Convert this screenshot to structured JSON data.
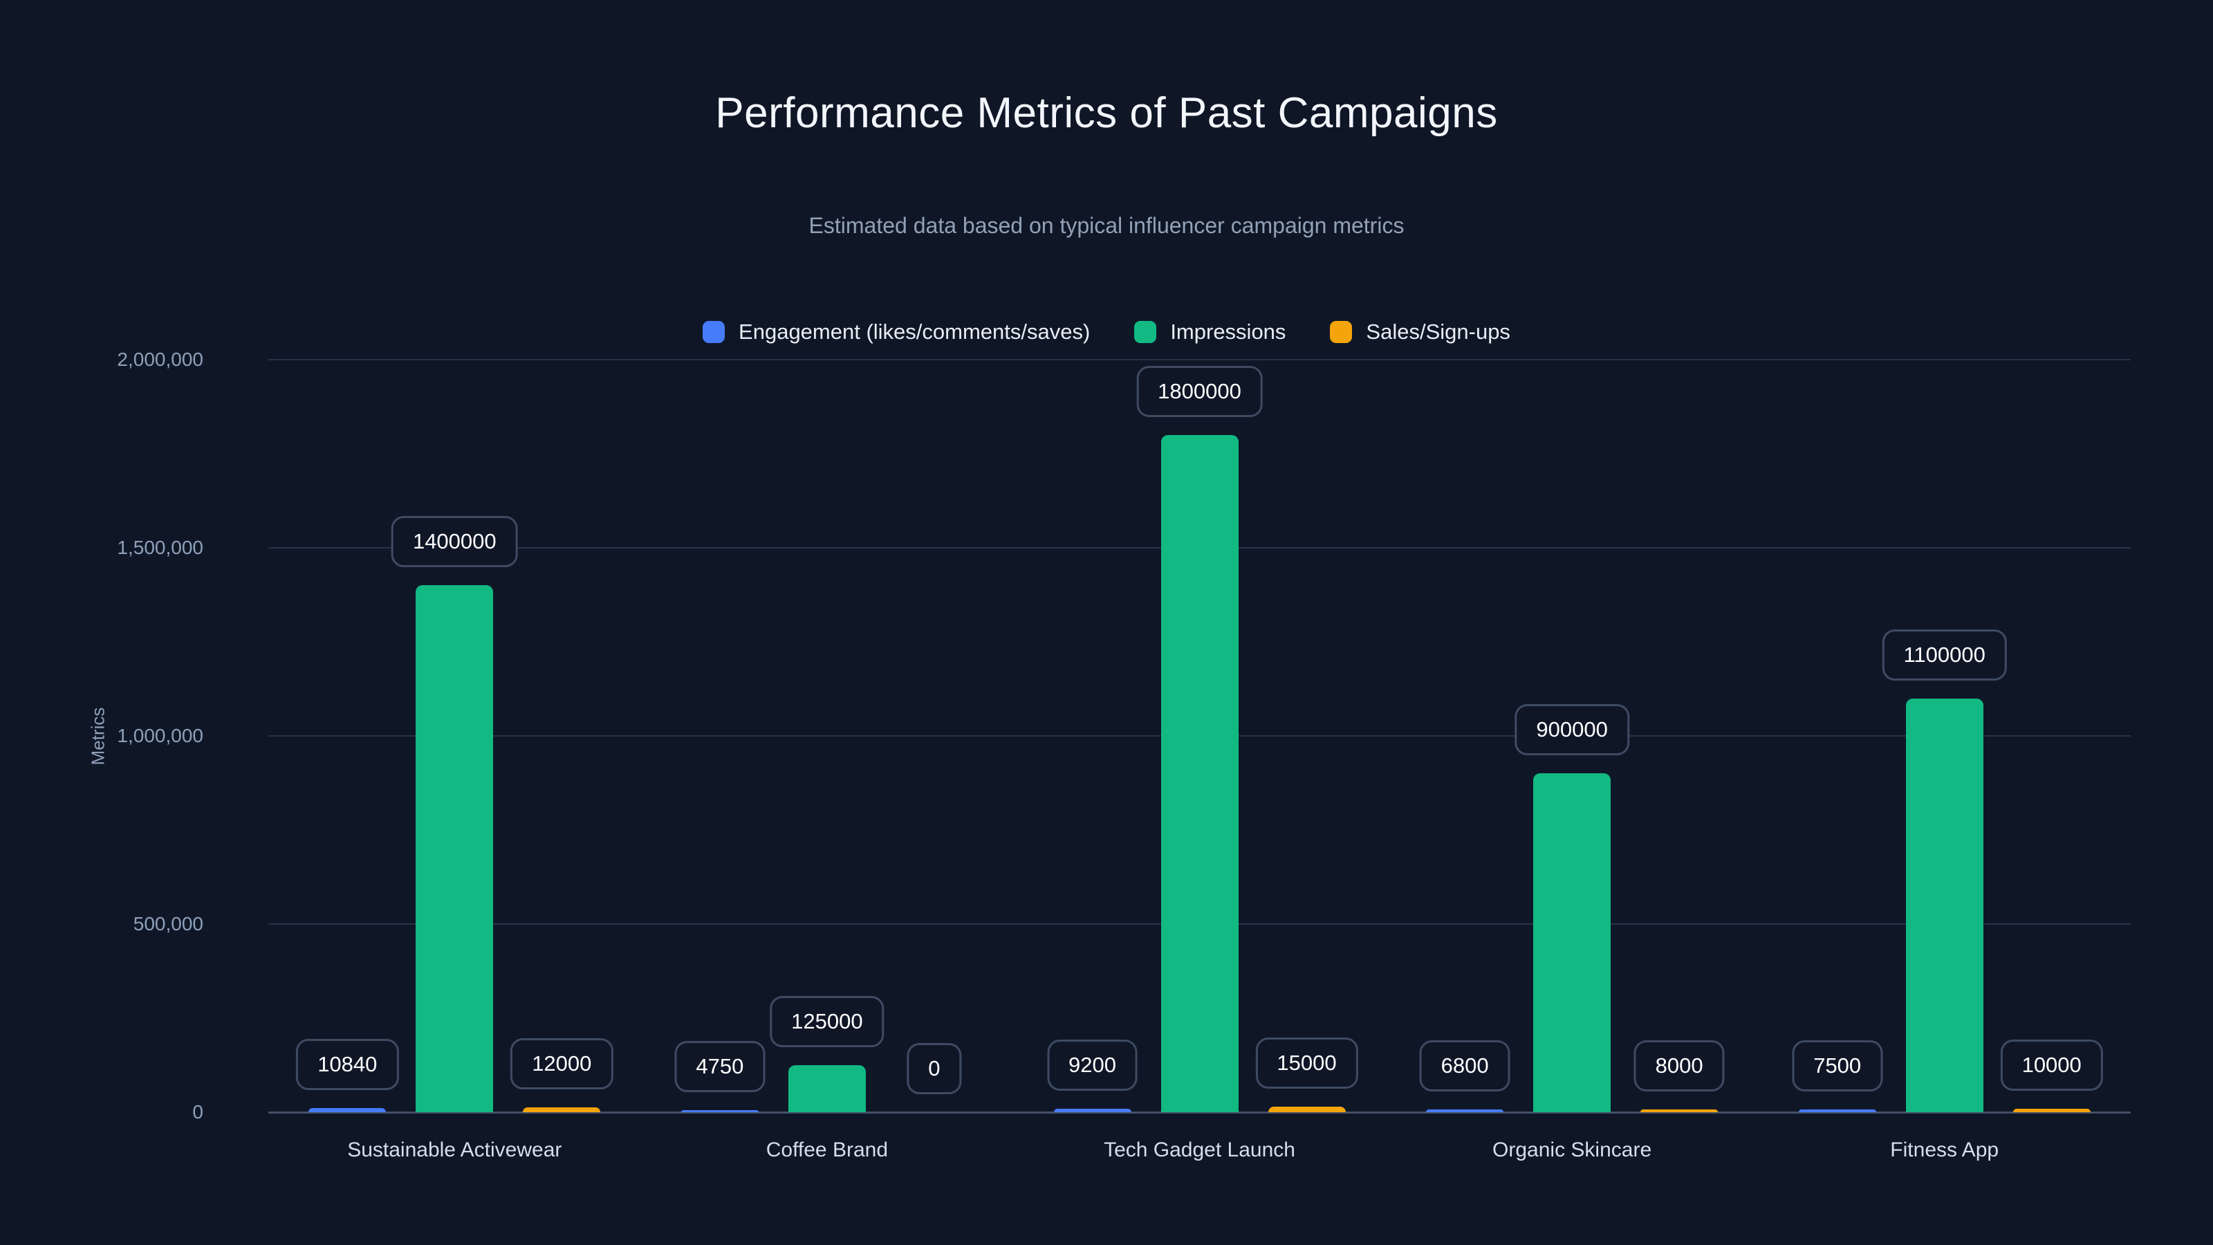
{
  "title": "Performance Metrics of Past Campaigns",
  "subtitle": "Estimated data based on typical influencer campaign metrics",
  "chart_data": {
    "type": "bar",
    "categories": [
      "Sustainable Activewear",
      "Coffee Brand",
      "Tech Gadget Launch",
      "Organic Skincare",
      "Fitness App"
    ],
    "series": [
      {
        "name": "Engagement (likes/comments/saves)",
        "color": "#477bf7",
        "values": [
          10840,
          4750,
          9200,
          6800,
          7500
        ]
      },
      {
        "name": "Impressions",
        "color": "#13b983",
        "values": [
          1400000,
          125000,
          1800000,
          900000,
          1100000
        ]
      },
      {
        "name": "Sales/Sign-ups",
        "color": "#f5a40b",
        "values": [
          12000,
          0,
          15000,
          8000,
          10000
        ]
      }
    ],
    "ylabel": "Metrics",
    "xlabel": "",
    "ylim": [
      0,
      2000000
    ],
    "yticks": [
      0,
      500000,
      1000000,
      1500000,
      2000000
    ],
    "ytick_labels": [
      "0",
      "500,000",
      "1,000,000",
      "1,500,000",
      "2,000,000"
    ],
    "grid": true,
    "legend_position": "top",
    "bar_value_labels": true
  },
  "colors": {
    "background": "#0f1727",
    "grid": "#263349",
    "axis": "#44506e",
    "tick_text": "#8fa0b8",
    "category_text": "#d6dee9",
    "title_text": "#f3f6fb",
    "subtitle_text": "#93a1b5",
    "value_label_border": "#3e4b61",
    "value_label_text": "#ffffff"
  }
}
